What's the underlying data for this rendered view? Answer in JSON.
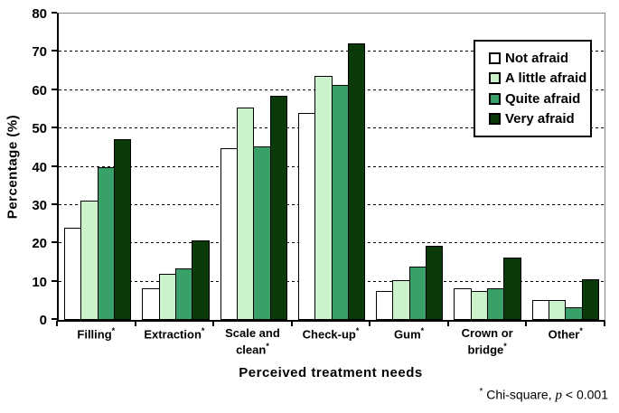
{
  "chart_data": {
    "type": "bar",
    "title": "",
    "xlabel": "Perceived treatment needs",
    "ylabel": "Percentage (%)",
    "ylim": [
      0,
      80
    ],
    "yticks": [
      0,
      10,
      20,
      30,
      40,
      50,
      60,
      70,
      80
    ],
    "grid": "horizontal-dashed",
    "legend_position": "top-right-inside",
    "category_suffix": "*",
    "categories": [
      {
        "label": "Filling",
        "star": "*"
      },
      {
        "label": "Extraction",
        "star": "*"
      },
      {
        "label": "Scale and clean",
        "star": "*"
      },
      {
        "label": "Check-up",
        "star": "*"
      },
      {
        "label": "Gum",
        "star": "*"
      },
      {
        "label": "Crown or bridge",
        "star": "*"
      },
      {
        "label": "Other",
        "star": "*"
      }
    ],
    "series": [
      {
        "name": "Not afraid",
        "color": "#ffffff",
        "values": [
          24.0,
          8.3,
          44.8,
          54.0,
          7.5,
          8.3,
          5.2
        ]
      },
      {
        "name": "A little afraid",
        "color": "#ccf2cc",
        "values": [
          31.2,
          12.0,
          55.4,
          63.7,
          10.4,
          7.6,
          5.2
        ]
      },
      {
        "name": "Quite afraid",
        "color": "#3aa06a",
        "values": [
          39.8,
          13.5,
          45.4,
          61.3,
          13.9,
          8.2,
          3.4
        ]
      },
      {
        "name": "Very afraid",
        "color": "#0a3a0a",
        "values": [
          47.2,
          20.7,
          58.6,
          72.2,
          19.4,
          16.2,
          10.7
        ]
      }
    ],
    "bar_border_color": "#000000",
    "axis_color": "#000000",
    "plot_border_color": "#848484",
    "footnote": {
      "marker": "*",
      "text": " Chi-square, ",
      "italic_term": "p",
      "comparison": " < 0.001"
    }
  }
}
